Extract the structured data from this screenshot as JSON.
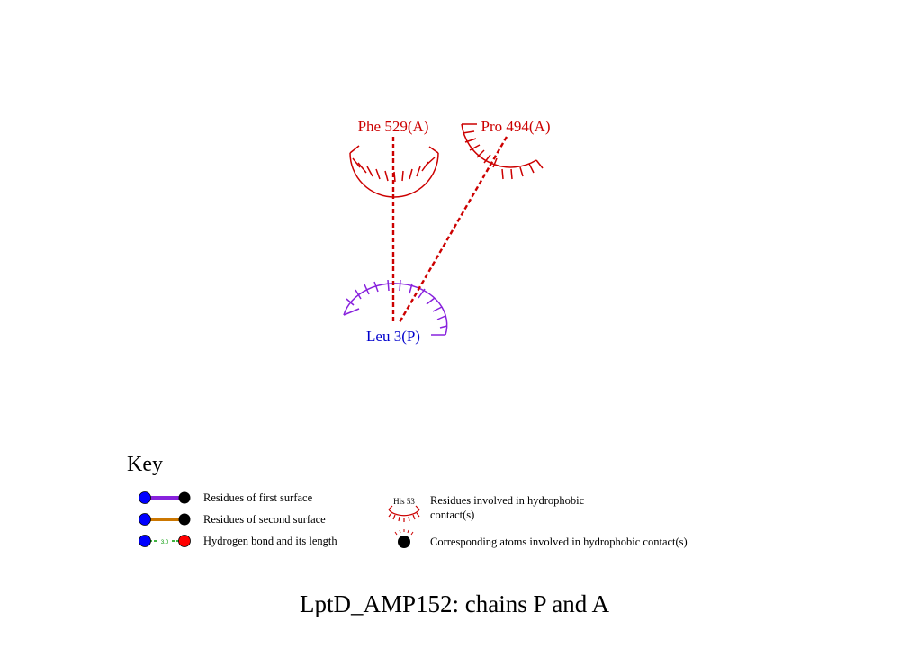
{
  "residues": {
    "phe": {
      "label": "Phe 529(A)"
    },
    "pro": {
      "label": "Pro 494(A)"
    },
    "leu": {
      "label": "Leu 3(P)"
    }
  },
  "colors": {
    "chainA": "#cc0000",
    "chainP_label": "#0000cc",
    "chainP_arc": "#8822dd",
    "contact_line": "#cc0000",
    "first_surface_bond": "#8822dd",
    "second_surface_bond": "#cc7700",
    "hbond": "#009900"
  },
  "key": {
    "title": "Key",
    "first_surface": "Residues of first surface",
    "second_surface": "Residues of second surface",
    "hbond": "Hydrogen bond and its length",
    "hbond_length": "3.0",
    "hydrophobic_example": "His 53",
    "hydrophobic_line1": "Residues involved in hydrophobic",
    "hydrophobic_line2": "contact(s)",
    "atoms": "Corresponding atoms involved in hydrophobic contact(s)"
  },
  "title": "LptD_AMP152: chains P and A"
}
